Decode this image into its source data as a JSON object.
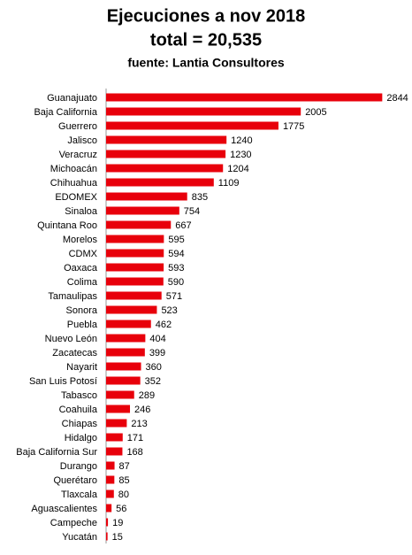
{
  "chart_data": {
    "type": "bar",
    "orientation": "horizontal",
    "title": "Ejecuciones a nov 2018",
    "subtitle": "total = 20,535",
    "source": "fuente: Lantia Consultores",
    "categories": [
      "Guanajuato",
      "Baja California",
      "Guerrero",
      "Jalisco",
      "Veracruz",
      "Michoacán",
      "Chihuahua",
      "EDOMEX",
      "Sinaloa",
      "Quintana Roo",
      "Morelos",
      "CDMX",
      "Oaxaca",
      "Colima",
      "Tamaulipas",
      "Sonora",
      "Puebla",
      "Nuevo León",
      "Zacatecas",
      "Nayarit",
      "San Luis Potosí",
      "Tabasco",
      "Coahuila",
      "Chiapas",
      "Hidalgo",
      "Baja California Sur",
      "Durango",
      "Querétaro",
      "Tlaxcala",
      "Aguascalientes",
      "Campeche",
      "Yucatán"
    ],
    "values": [
      2844,
      2005,
      1775,
      1240,
      1230,
      1204,
      1109,
      835,
      754,
      667,
      595,
      594,
      593,
      590,
      571,
      523,
      462,
      404,
      399,
      360,
      352,
      289,
      246,
      213,
      171,
      168,
      87,
      85,
      80,
      56,
      19,
      15
    ],
    "color": "#e8000b",
    "xlim": [
      0,
      2850
    ]
  }
}
